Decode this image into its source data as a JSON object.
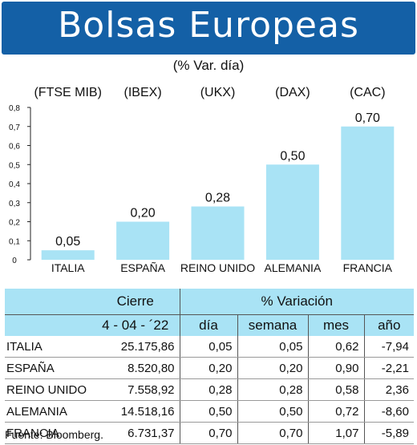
{
  "header": {
    "title": "Bolsas Europeas",
    "subtitle": "(% Var. día)"
  },
  "chart_data": {
    "type": "bar",
    "categories": [
      "ITALIA",
      "ESPAÑA",
      "REINO UNIDO",
      "ALEMANIA",
      "FRANCIA"
    ],
    "indices": [
      "(FTSE MIB)",
      "(IBEX)",
      "(UKX)",
      "(DAX)",
      "(CAC)"
    ],
    "values": [
      0.05,
      0.2,
      0.28,
      0.5,
      0.7
    ],
    "value_labels": [
      "0,05",
      "0,20",
      "0,28",
      "0,50",
      "0,70"
    ],
    "yticks": [
      "0",
      "0,1",
      "0,2",
      "0,3",
      "0,4",
      "0,5",
      "0,6",
      "0,7",
      "0,8"
    ],
    "ylim": [
      0,
      0.8
    ],
    "grid": false,
    "bar_color": "#a9e3f5"
  },
  "table": {
    "header_cierre": "Cierre",
    "header_variacion": "% Variación",
    "date": "4 - 04 - ´22",
    "cols": [
      "día",
      "semana",
      "mes",
      "año"
    ],
    "rows": [
      {
        "name": "ITALIA",
        "cierre": "25.175,86",
        "dia": "0,05",
        "semana": "0,05",
        "mes": "0,62",
        "anio": "-7,94"
      },
      {
        "name": "ESPAÑA",
        "cierre": "8.520,80",
        "dia": "0,20",
        "semana": "0,20",
        "mes": "0,90",
        "anio": "-2,21"
      },
      {
        "name": "REINO UNIDO",
        "cierre": "7.558,92",
        "dia": "0,28",
        "semana": "0,28",
        "mes": "0,58",
        "anio": "2,36"
      },
      {
        "name": "ALEMANIA",
        "cierre": "14.518,16",
        "dia": "0,50",
        "semana": "0,50",
        "mes": "0,72",
        "anio": "-8,60"
      },
      {
        "name": "FRANCIA",
        "cierre": "6.731,37",
        "dia": "0,70",
        "semana": "0,70",
        "mes": "1,07",
        "anio": "-5,89"
      }
    ]
  },
  "source": "Fuente: Bloomberg."
}
